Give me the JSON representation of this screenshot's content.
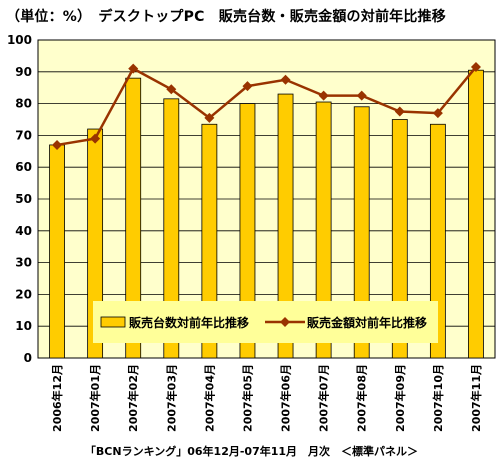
{
  "page": {
    "title": "（単位：%）　デスクトップPC　販売台数・販売金額の対前年比推移",
    "footer": "「BCNランキング」06年12月-07年11月　月次　＜標準パネル＞"
  },
  "chart_data": {
    "type": "bar",
    "categories": [
      "2006年12月",
      "2007年01月",
      "2007年02月",
      "2007年03月",
      "2007年04月",
      "2007年05月",
      "2007年06月",
      "2007年07月",
      "2007年08月",
      "2007年09月",
      "2007年10月",
      "2007年11月"
    ],
    "series": [
      {
        "name": "販売台数対前年比推移",
        "type": "bar",
        "color": "#FFCC00",
        "values": [
          67,
          72,
          88,
          81.5,
          73.5,
          80,
          83,
          80.5,
          79,
          75,
          73.5,
          90.5
        ]
      },
      {
        "name": "販売金額対前年比推移",
        "type": "line",
        "color": "#993300",
        "values": [
          67,
          69,
          91,
          84.5,
          75.5,
          85.5,
          87.5,
          82.5,
          82.5,
          77.5,
          77,
          91.5
        ]
      }
    ],
    "yticks": [
      0,
      10,
      20,
      30,
      40,
      50,
      60,
      70,
      80,
      90,
      100
    ],
    "ylim": [
      0,
      100
    ],
    "grid": true,
    "legend": "bottom-center",
    "plot_background": "#FFFFCC",
    "legend_background": "#FFFF99"
  }
}
